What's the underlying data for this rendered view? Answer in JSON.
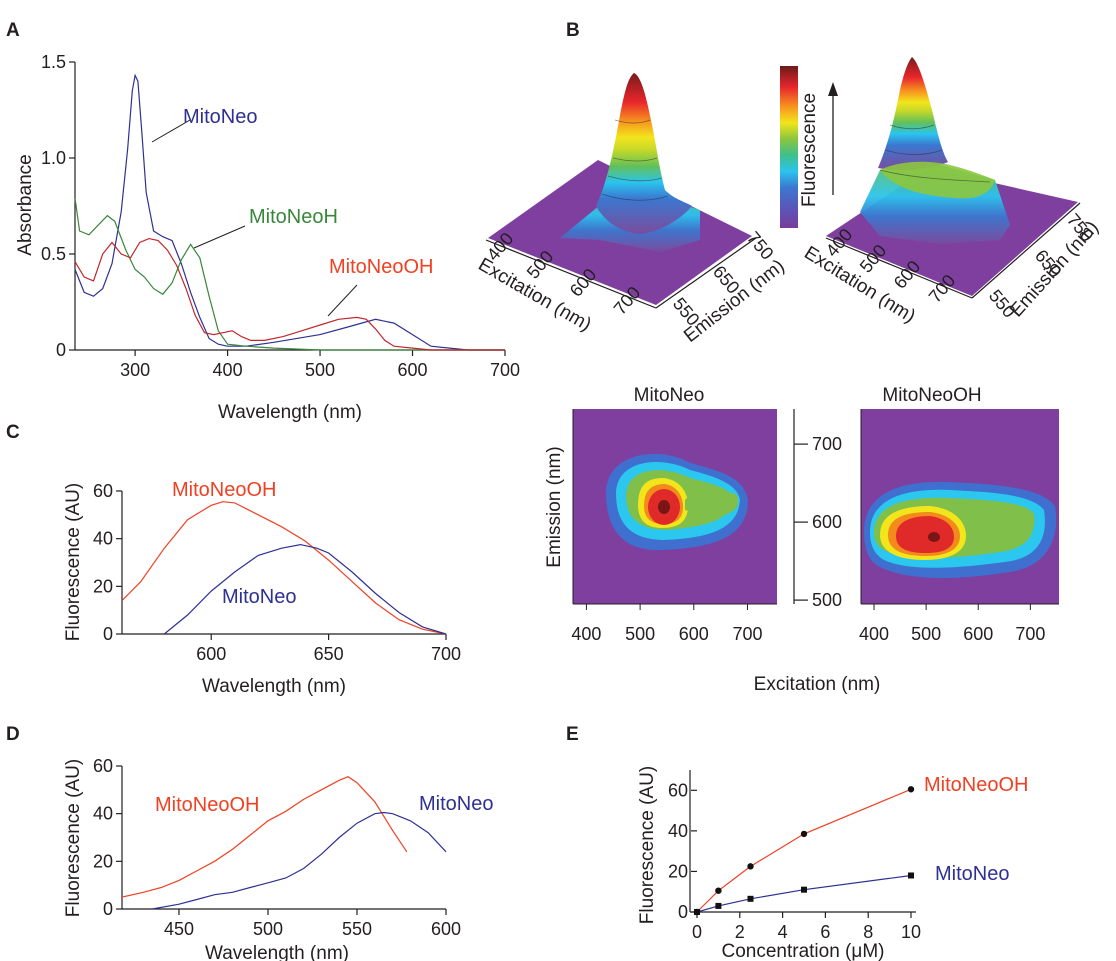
{
  "panels": {
    "A": "A",
    "B": "B",
    "C": "C",
    "D": "D",
    "E": "E"
  },
  "colors": {
    "mitoneo": "#2e3192",
    "mitoneoh": "#39873a",
    "mitoneooh_abs": "#c1272d",
    "mitoneooh": "#ef4123"
  },
  "chart_data": [
    {
      "id": "A",
      "type": "line",
      "xlabel": "Wavelength (nm)",
      "ylabel": "Absorbance",
      "xlim": [
        235,
        700
      ],
      "ylim": [
        0,
        1.5
      ],
      "xticks": [
        "300",
        "400",
        "500",
        "600",
        "700"
      ],
      "yticks": [
        "0",
        "0.5",
        "1.0",
        "1.5"
      ],
      "series": [
        {
          "name": "MitoNeo",
          "color": "#2e3192",
          "x": [
            235,
            245,
            255,
            265,
            275,
            285,
            292,
            297,
            300,
            303,
            307,
            312,
            320,
            330,
            340,
            350,
            360,
            370,
            380,
            390,
            400,
            420,
            450,
            500,
            530,
            560,
            580,
            600,
            620,
            640,
            660,
            700
          ],
          "y": [
            0.42,
            0.3,
            0.28,
            0.32,
            0.45,
            0.72,
            1.05,
            1.35,
            1.43,
            1.4,
            1.15,
            0.82,
            0.62,
            0.59,
            0.57,
            0.45,
            0.3,
            0.17,
            0.06,
            0.03,
            0.02,
            0.02,
            0.04,
            0.08,
            0.12,
            0.16,
            0.14,
            0.08,
            0.02,
            0.01,
            0.0,
            0.0
          ]
        },
        {
          "name": "MitoNeoH",
          "color": "#39873a",
          "x": [
            235,
            240,
            250,
            260,
            270,
            278,
            290,
            300,
            310,
            320,
            330,
            340,
            350,
            360,
            370,
            380,
            390,
            400,
            420,
            450,
            500,
            600,
            700
          ],
          "y": [
            0.79,
            0.62,
            0.6,
            0.65,
            0.7,
            0.67,
            0.52,
            0.42,
            0.38,
            0.32,
            0.29,
            0.35,
            0.47,
            0.55,
            0.48,
            0.28,
            0.1,
            0.03,
            0.02,
            0.01,
            0.0,
            0.0,
            0.0
          ]
        },
        {
          "name": "MitoNeoOH",
          "color": "#c1272d",
          "x": [
            235,
            245,
            255,
            265,
            275,
            285,
            295,
            305,
            315,
            325,
            335,
            345,
            355,
            365,
            375,
            385,
            395,
            405,
            415,
            425,
            440,
            460,
            480,
            500,
            520,
            540,
            550,
            560,
            570,
            580,
            600,
            620,
            640,
            700
          ],
          "y": [
            0.46,
            0.38,
            0.36,
            0.5,
            0.56,
            0.5,
            0.48,
            0.56,
            0.58,
            0.57,
            0.52,
            0.44,
            0.32,
            0.18,
            0.09,
            0.08,
            0.09,
            0.1,
            0.07,
            0.05,
            0.05,
            0.07,
            0.1,
            0.13,
            0.16,
            0.17,
            0.16,
            0.11,
            0.05,
            0.02,
            0.01,
            0.0,
            0.0,
            0.0
          ]
        }
      ],
      "labels": [
        "MitoNeo",
        "MitoNeoH",
        "MitoNeoOH"
      ]
    },
    {
      "id": "C",
      "type": "line",
      "xlabel": "Wavelength (nm)",
      "ylabel": "Fluorescence (AU)",
      "xlim": [
        562,
        700
      ],
      "ylim": [
        0,
        60
      ],
      "xticks": [
        "600",
        "650",
        "700"
      ],
      "yticks": [
        "0",
        "20",
        "40",
        "60"
      ],
      "series": [
        {
          "name": "MitoNeoOH",
          "color": "#ef4123",
          "x": [
            562,
            570,
            580,
            590,
            600,
            605,
            610,
            620,
            630,
            640,
            650,
            660,
            670,
            680,
            690,
            700
          ],
          "y": [
            14,
            22,
            36,
            48,
            54,
            55.5,
            55,
            50,
            45,
            39,
            31,
            22,
            13,
            6,
            2,
            0
          ]
        },
        {
          "name": "MitoNeo",
          "color": "#2e3192",
          "x": [
            580,
            590,
            600,
            610,
            620,
            630,
            638,
            645,
            650,
            660,
            670,
            680,
            690,
            700
          ],
          "y": [
            0,
            8,
            18,
            26,
            33,
            36,
            37.5,
            36,
            34,
            26,
            17,
            9,
            3,
            0
          ]
        }
      ]
    },
    {
      "id": "D",
      "type": "line",
      "xlabel": "Wavelength (nm)",
      "ylabel": "Fluorescence (AU)",
      "xlim": [
        418,
        600
      ],
      "ylim": [
        0,
        60
      ],
      "xticks": [
        "450",
        "500",
        "550",
        "600"
      ],
      "yticks": [
        "0",
        "20",
        "40",
        "60"
      ],
      "series": [
        {
          "name": "MitoNeoOH",
          "color": "#ef4123",
          "x": [
            418,
            430,
            440,
            450,
            460,
            470,
            480,
            490,
            500,
            510,
            520,
            530,
            540,
            545,
            550,
            560,
            570,
            578
          ],
          "y": [
            5,
            7,
            9,
            12,
            16,
            20,
            25,
            31,
            37,
            41,
            46,
            50,
            54,
            55.5,
            53,
            45,
            33,
            24
          ]
        },
        {
          "name": "MitoNeo",
          "color": "#2e3192",
          "x": [
            435,
            450,
            460,
            470,
            480,
            490,
            500,
            510,
            520,
            530,
            540,
            550,
            560,
            565,
            570,
            580,
            590,
            600
          ],
          "y": [
            0,
            2,
            4,
            6,
            7,
            9,
            11,
            13,
            17,
            23,
            30,
            36,
            40,
            40.5,
            40,
            37,
            32,
            24
          ]
        }
      ]
    },
    {
      "id": "E",
      "type": "scatter",
      "xlabel": "Concentration (μM)",
      "ylabel": "Fluorescence (AU)",
      "xlim": [
        0,
        10
      ],
      "ylim": [
        0,
        70
      ],
      "xticks": [
        "0",
        "2",
        "4",
        "6",
        "8",
        "10"
      ],
      "yticks": [
        "0",
        "20",
        "40",
        "60"
      ],
      "series": [
        {
          "name": "MitoNeoOH",
          "color": "#ef4123",
          "marker": "circle",
          "x": [
            0,
            1,
            2.5,
            5,
            10
          ],
          "y": [
            0,
            10.5,
            22.5,
            38.5,
            60.5
          ]
        },
        {
          "name": "MitoNeo",
          "color": "#2e3192",
          "marker": "square",
          "x": [
            0,
            1,
            2.5,
            5,
            10
          ],
          "y": [
            0,
            3,
            6.5,
            11,
            18
          ]
        }
      ]
    },
    {
      "id": "B",
      "type": "heatmap",
      "colorbar_label": "Fluorescence",
      "surface_titles": [
        "MitoNeo",
        "MitoNeoOH"
      ],
      "surface_axes": {
        "excitation_label": "Excitation (nm)",
        "emission_label": "Emission (nm)",
        "excitation_ticks": [
          "400",
          "500",
          "600",
          "700"
        ],
        "emission_ticks": [
          "550",
          "650",
          "750"
        ]
      },
      "contour": {
        "xlabel": "Excitation (nm)",
        "ylabel": "Emission (nm)",
        "xlim": [
          375,
          755
        ],
        "ylim": [
          495,
          745
        ],
        "xticks": [
          "400",
          "500",
          "600",
          "700"
        ],
        "yticks": [
          "500",
          "600",
          "700"
        ]
      },
      "maps": [
        {
          "name": "MitoNeo",
          "peak": {
            "excitation": 555,
            "emission": 615
          }
        },
        {
          "name": "MitoNeoOH",
          "peak": {
            "excitation": 530,
            "emission": 592
          }
        }
      ]
    }
  ]
}
